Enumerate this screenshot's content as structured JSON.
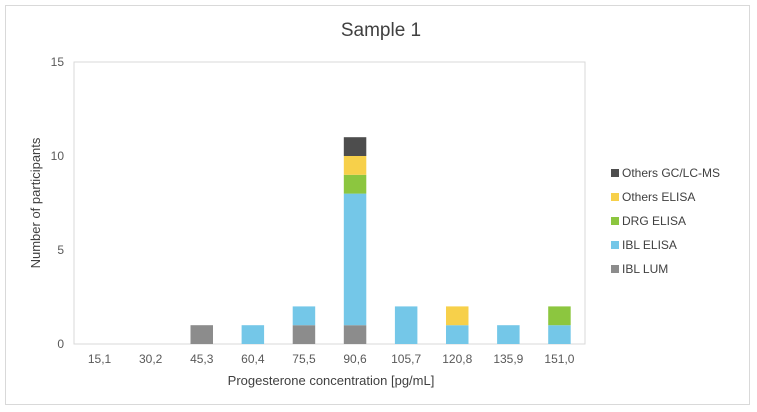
{
  "chart_data": {
    "type": "bar",
    "stacked": true,
    "title": "Sample 1",
    "xlabel": "Progesterone concentration [pg/mL]",
    "ylabel": "Number of participants",
    "ylim": [
      0,
      15
    ],
    "yticks": [
      "0",
      "5",
      "10",
      "15"
    ],
    "categories": [
      "15,1",
      "30,2",
      "45,3",
      "60,4",
      "75,5",
      "90,6",
      "105,7",
      "120,8",
      "135,9",
      "151,0"
    ],
    "series": [
      {
        "name": "IBL LUM",
        "color": "#8c8c8c",
        "values": [
          0,
          0,
          1,
          0,
          1,
          1,
          0,
          0,
          0,
          0
        ]
      },
      {
        "name": "IBL ELISA",
        "color": "#74c7e8",
        "values": [
          0,
          0,
          0,
          1,
          1,
          7,
          2,
          1,
          1,
          1
        ]
      },
      {
        "name": "DRG ELISA",
        "color": "#8cc63f",
        "values": [
          0,
          0,
          0,
          0,
          0,
          1,
          0,
          0,
          0,
          1
        ]
      },
      {
        "name": "Others ELISA",
        "color": "#f7d04a",
        "values": [
          0,
          0,
          0,
          0,
          0,
          1,
          0,
          1,
          0,
          0
        ]
      },
      {
        "name": "Others GC/LC-MS",
        "color": "#4d4d4d",
        "values": [
          0,
          0,
          0,
          0,
          0,
          1,
          0,
          0,
          0,
          0
        ]
      }
    ],
    "legend_position": "right",
    "legend_order": [
      "Others GC/LC-MS",
      "Others ELISA",
      "DRG ELISA",
      "IBL ELISA",
      "IBL LUM"
    ],
    "grid": false
  }
}
